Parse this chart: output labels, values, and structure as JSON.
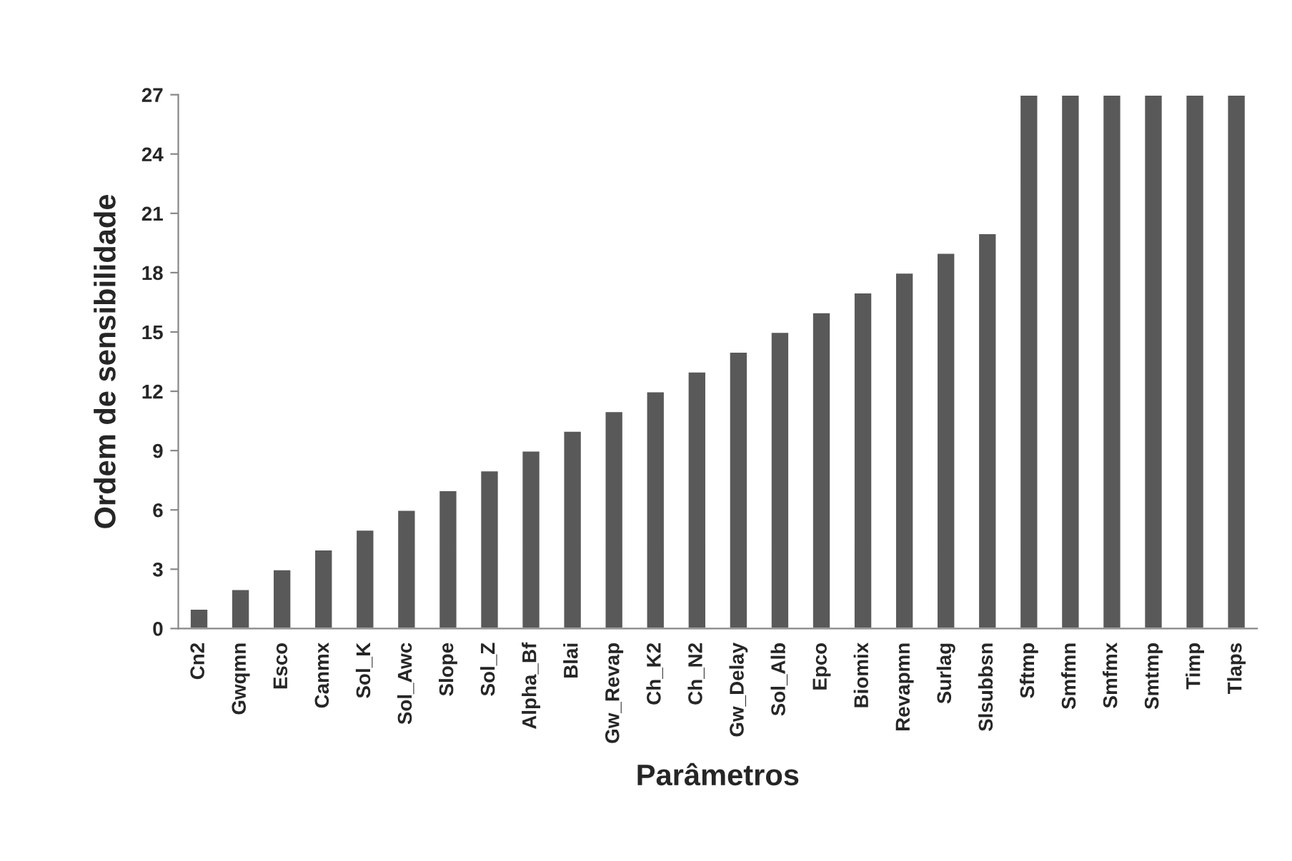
{
  "chart_data": {
    "type": "bar",
    "xlabel": "Parâmetros",
    "ylabel": "Ordem de sensibilidade",
    "categories": [
      "Cn2",
      "Gwqmn",
      "Esco",
      "Canmx",
      "Sol_K",
      "Sol_Awc",
      "Slope",
      "Sol_Z",
      "Alpha_Bf",
      "Blai",
      "Gw_Revap",
      "Ch_K2",
      "Ch_N2",
      "Gw_Delay",
      "Sol_Alb",
      "Epco",
      "Biomix",
      "Revapmn",
      "Surlag",
      "Slsubbsn",
      "Sftmp",
      "Smfmn",
      "Smfmx",
      "Smtmp",
      "Timp",
      "Tlaps"
    ],
    "values": [
      1,
      2,
      3,
      4,
      5,
      6,
      7,
      8,
      9,
      10,
      11,
      12,
      13,
      14,
      15,
      16,
      17,
      18,
      19,
      20,
      27,
      27,
      27,
      27,
      27,
      27
    ],
    "color": "#595959",
    "ylim": [
      0,
      27
    ],
    "yticks": [
      0,
      3,
      6,
      9,
      12,
      15,
      18,
      21,
      24,
      27
    ],
    "grid": false,
    "legend": false
  }
}
